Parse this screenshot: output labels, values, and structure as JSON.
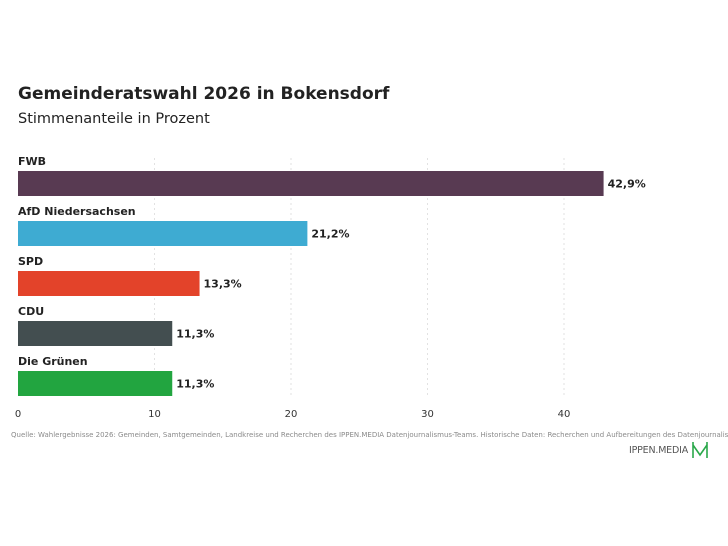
{
  "title": "Gemeinderatswahl 2026 in Bokensdorf",
  "subtitle": "Stimmenanteile in Prozent",
  "source": "Quelle: Wahlergebnisse 2026: Gemeinden, Samtgemeinden, Landkreise und Recherchen des IPPEN.MEDIA Datenjournalismus-Teams. Historische Daten: Recherchen und Aufbereitungen des Datenjournalismus-Teams.",
  "brand": {
    "name": "IPPEN.MEDIA",
    "logo_icon": "ippen-media-m-logo",
    "logo_color": "#2aa84a"
  },
  "chart_data": {
    "type": "bar",
    "orientation": "horizontal",
    "categories": [
      "FWB",
      "AfD Niedersachsen",
      "SPD",
      "CDU",
      "Die Grünen"
    ],
    "values": [
      42.9,
      21.2,
      13.3,
      11.3,
      11.3
    ],
    "value_labels": [
      "42,9%",
      "21,2%",
      "13,3%",
      "11,3%",
      "11,3%"
    ],
    "colors": [
      "#583a52",
      "#3eabd2",
      "#e3432a",
      "#434e50",
      "#22a540"
    ],
    "xlim": [
      0,
      45
    ],
    "xticks": [
      0,
      10,
      20,
      30,
      40
    ],
    "xlabel": "",
    "ylabel": "",
    "grid": true
  }
}
